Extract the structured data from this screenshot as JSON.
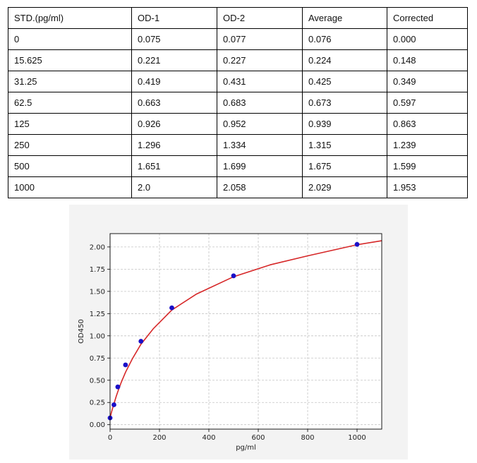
{
  "table": {
    "headers": [
      "STD.(pg/ml)",
      "OD-1",
      "OD-2",
      "Average",
      "Corrected"
    ],
    "rows": [
      [
        "0",
        "0.075",
        "0.077",
        "0.076",
        "0.000"
      ],
      [
        "15.625",
        "0.221",
        "0.227",
        "0.224",
        "0.148"
      ],
      [
        "31.25",
        "0.419",
        "0.431",
        "0.425",
        "0.349"
      ],
      [
        "62.5",
        "0.663",
        "0.683",
        "0.673",
        "0.597"
      ],
      [
        "125",
        "0.926",
        "0.952",
        "0.939",
        "0.863"
      ],
      [
        "250",
        "1.296",
        "1.334",
        "1.315",
        "1.239"
      ],
      [
        "500",
        "1.651",
        "1.699",
        "1.675",
        "1.599"
      ],
      [
        "1000",
        "2.0",
        "2.058",
        "2.029",
        "1.953"
      ]
    ]
  },
  "chart_data": {
    "type": "scatter",
    "title": "",
    "xlabel": "pg/ml",
    "ylabel": "OD450",
    "xlim": [
      0,
      1100
    ],
    "ylim": [
      -0.05,
      2.15
    ],
    "x_ticks": [
      0,
      200,
      400,
      600,
      800,
      1000
    ],
    "y_ticks": [
      0.0,
      0.25,
      0.5,
      0.75,
      1.0,
      1.25,
      1.5,
      1.75,
      2.0
    ],
    "x_tick_labels": [
      "0",
      "200",
      "400",
      "600",
      "800",
      "1000"
    ],
    "y_tick_labels": [
      "0.00",
      "0.25",
      "0.50",
      "0.75",
      "1.00",
      "1.25",
      "1.50",
      "1.75",
      "2.00"
    ],
    "grid": true,
    "series": [
      {
        "type": "scatter",
        "x": [
          0,
          15.625,
          31.25,
          62.5,
          125,
          250,
          500,
          1000
        ],
        "y": [
          0.076,
          0.224,
          0.425,
          0.673,
          0.939,
          1.315,
          1.675,
          2.029
        ],
        "color": "#1a10c8"
      },
      {
        "type": "line",
        "curve": "four-parameter logistic fit",
        "x": [
          0,
          5,
          10,
          15.625,
          25,
          31.25,
          45,
          62.5,
          90,
          125,
          175,
          250,
          350,
          500,
          650,
          800,
          1000,
          1100
        ],
        "y": [
          0.076,
          0.133,
          0.183,
          0.235,
          0.32,
          0.371,
          0.475,
          0.59,
          0.74,
          0.905,
          1.08,
          1.29,
          1.47,
          1.665,
          1.8,
          1.9,
          2.025,
          2.07
        ],
        "color": "#d62728"
      }
    ]
  }
}
